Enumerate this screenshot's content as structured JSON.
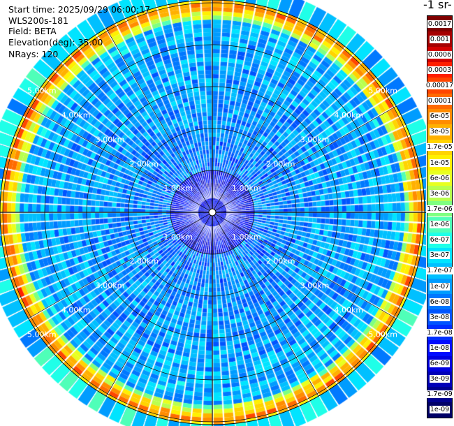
{
  "info": {
    "start_time": "Start time: 2025/09/29 06:00:17",
    "instrument": "WLS200s-181",
    "field": "Field: BETA",
    "elevation": "Elevation(deg): 35.00",
    "nrays": "NRays: 120"
  },
  "colorbar": {
    "title": "-1 sr-",
    "labels": [
      "0.0017",
      "0.001",
      "0.0006",
      "0.0003",
      "0.00017",
      "0.0001",
      "6e-05",
      "3e-05",
      "1.7e-05",
      "1e-05",
      "6e-06",
      "3e-06",
      "1.7e-06",
      "1e-06",
      "6e-07",
      "3e-07",
      "1.7e-07",
      "1e-07",
      "6e-08",
      "3e-08",
      "1.7e-08",
      "1e-08",
      "6e-09",
      "3e-09",
      "1.7e-09",
      "1e-09"
    ],
    "colors": [
      "#7f0000",
      "#a50000",
      "#d40000",
      "#ff1e00",
      "#ff4500",
      "#ff6a00",
      "#ff8c00",
      "#ffb000",
      "#ffd400",
      "#fff000",
      "#e8ff1f",
      "#b8ff4f",
      "#7fff80",
      "#4fffb8",
      "#1fffe8",
      "#00e4ff",
      "#00c0ff",
      "#009cff",
      "#0078ff",
      "#0054ff",
      "#0030ff",
      "#000cff",
      "#0000e0",
      "#0000b8",
      "#00008f",
      "#000066"
    ]
  },
  "chart_data": {
    "type": "heatmap",
    "projection": "polar-ppi",
    "range_unit": "km",
    "max_range_km": 5.6,
    "range_rings_km": [
      1.0,
      2.0,
      3.0,
      4.0,
      5.0
    ],
    "ring_labels": [
      "1.00km",
      "2.00km",
      "3.00km",
      "4.00km",
      "5.00km"
    ],
    "n_rays": 120,
    "range_gate_km": 0.1,
    "color_scale": "log",
    "value_range": [
      1e-09,
      0.0017
    ],
    "features": [
      {
        "range_km_min": 4.6,
        "range_km_max": 5.3,
        "typical_value": "1.7e-05 to 1e-04",
        "description_level": "high"
      },
      {
        "range_km_min": 0.2,
        "range_km_max": 4.5,
        "typical_value": "3e-08 to 1.7e-07",
        "description_level": "low"
      }
    ]
  }
}
